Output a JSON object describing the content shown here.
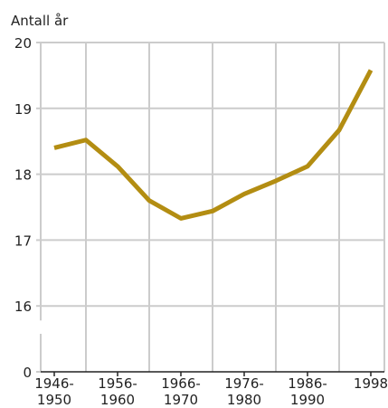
{
  "chart_data": {
    "type": "line",
    "y_label": "Antall år",
    "categories": [
      "1946-1950",
      null,
      "1956-1960",
      null,
      "1966-1970",
      null,
      "1976-1980",
      null,
      "1986-1990",
      null,
      "1998"
    ],
    "series": [
      {
        "name": null,
        "color": "#b38d12",
        "values": [
          18.4,
          18.52,
          18.12,
          17.6,
          17.33,
          17.44,
          17.7,
          17.9,
          18.12,
          18.67,
          19.58
        ]
      }
    ],
    "ylim": [
      0,
      20
    ],
    "yticks": [
      0,
      16,
      17,
      18,
      19,
      20
    ],
    "axis_break": true,
    "grid": true
  }
}
